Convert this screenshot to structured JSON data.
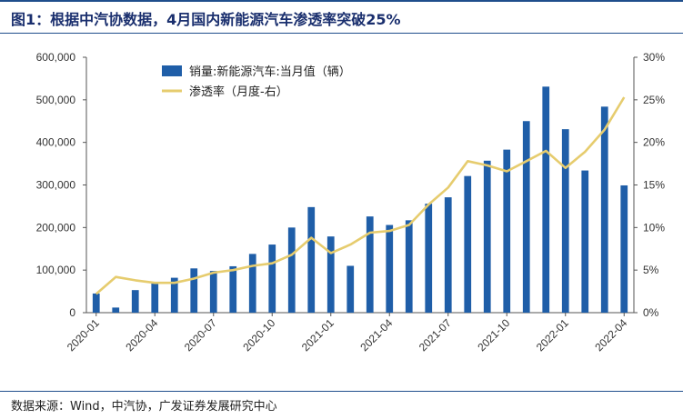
{
  "title": "图1：根据中汽协数据，4月国内新能源汽车渗透率突破25%",
  "source": "数据来源：Wind，中汽协，广发证券发展研究中心",
  "colors": {
    "bar": "#1f5ea8",
    "line": "#e6cc6e",
    "title": "#1a2f6e",
    "rule": "#1f4e8c"
  },
  "chart_data": {
    "type": "bar+line",
    "x": [
      "2020-01",
      "2020-02",
      "2020-03",
      "2020-04",
      "2020-05",
      "2020-06",
      "2020-07",
      "2020-08",
      "2020-09",
      "2020-10",
      "2020-11",
      "2020-12",
      "2021-01",
      "2021-02",
      "2021-03",
      "2021-04",
      "2021-05",
      "2021-06",
      "2021-07",
      "2021-08",
      "2021-09",
      "2021-10",
      "2021-11",
      "2021-12",
      "2022-01",
      "2022-02",
      "2022-03",
      "2022-04"
    ],
    "tick_labels": [
      "2020-01",
      "2020-04",
      "2020-07",
      "2020-10",
      "2021-01",
      "2021-04",
      "2021-07",
      "2021-10",
      "2022-01",
      "2022-04"
    ],
    "series": [
      {
        "name": "销量:新能源汽车:当月值（辆）",
        "type": "bar",
        "axis": "left",
        "values": [
          45000,
          12000,
          53000,
          72000,
          82000,
          104000,
          98000,
          109000,
          138000,
          160000,
          200000,
          248000,
          179000,
          110000,
          226000,
          206000,
          217000,
          256000,
          271000,
          321000,
          357000,
          383000,
          450000,
          531000,
          431000,
          334000,
          484000,
          299000
        ]
      },
      {
        "name": "渗透率（月度-右）",
        "type": "line",
        "axis": "right",
        "values": [
          2.2,
          4.2,
          3.8,
          3.5,
          3.5,
          4.0,
          4.7,
          5.0,
          5.5,
          5.8,
          6.8,
          8.8,
          7.0,
          8.0,
          9.4,
          9.6,
          10.3,
          12.7,
          14.7,
          17.8,
          17.3,
          16.6,
          17.8,
          19.0,
          17.0,
          18.9,
          21.5,
          25.3
        ]
      }
    ],
    "y_left": {
      "ticks": [
        "0",
        "100,000",
        "200,000",
        "300,000",
        "400,000",
        "500,000",
        "600,000"
      ],
      "ylim": [
        0,
        600000
      ]
    },
    "y_right": {
      "ticks": [
        "0%",
        "5%",
        "10%",
        "15%",
        "20%",
        "25%",
        "30%"
      ],
      "ylim": [
        0,
        30
      ]
    },
    "legend_position": "top-left inside",
    "grid": false
  }
}
